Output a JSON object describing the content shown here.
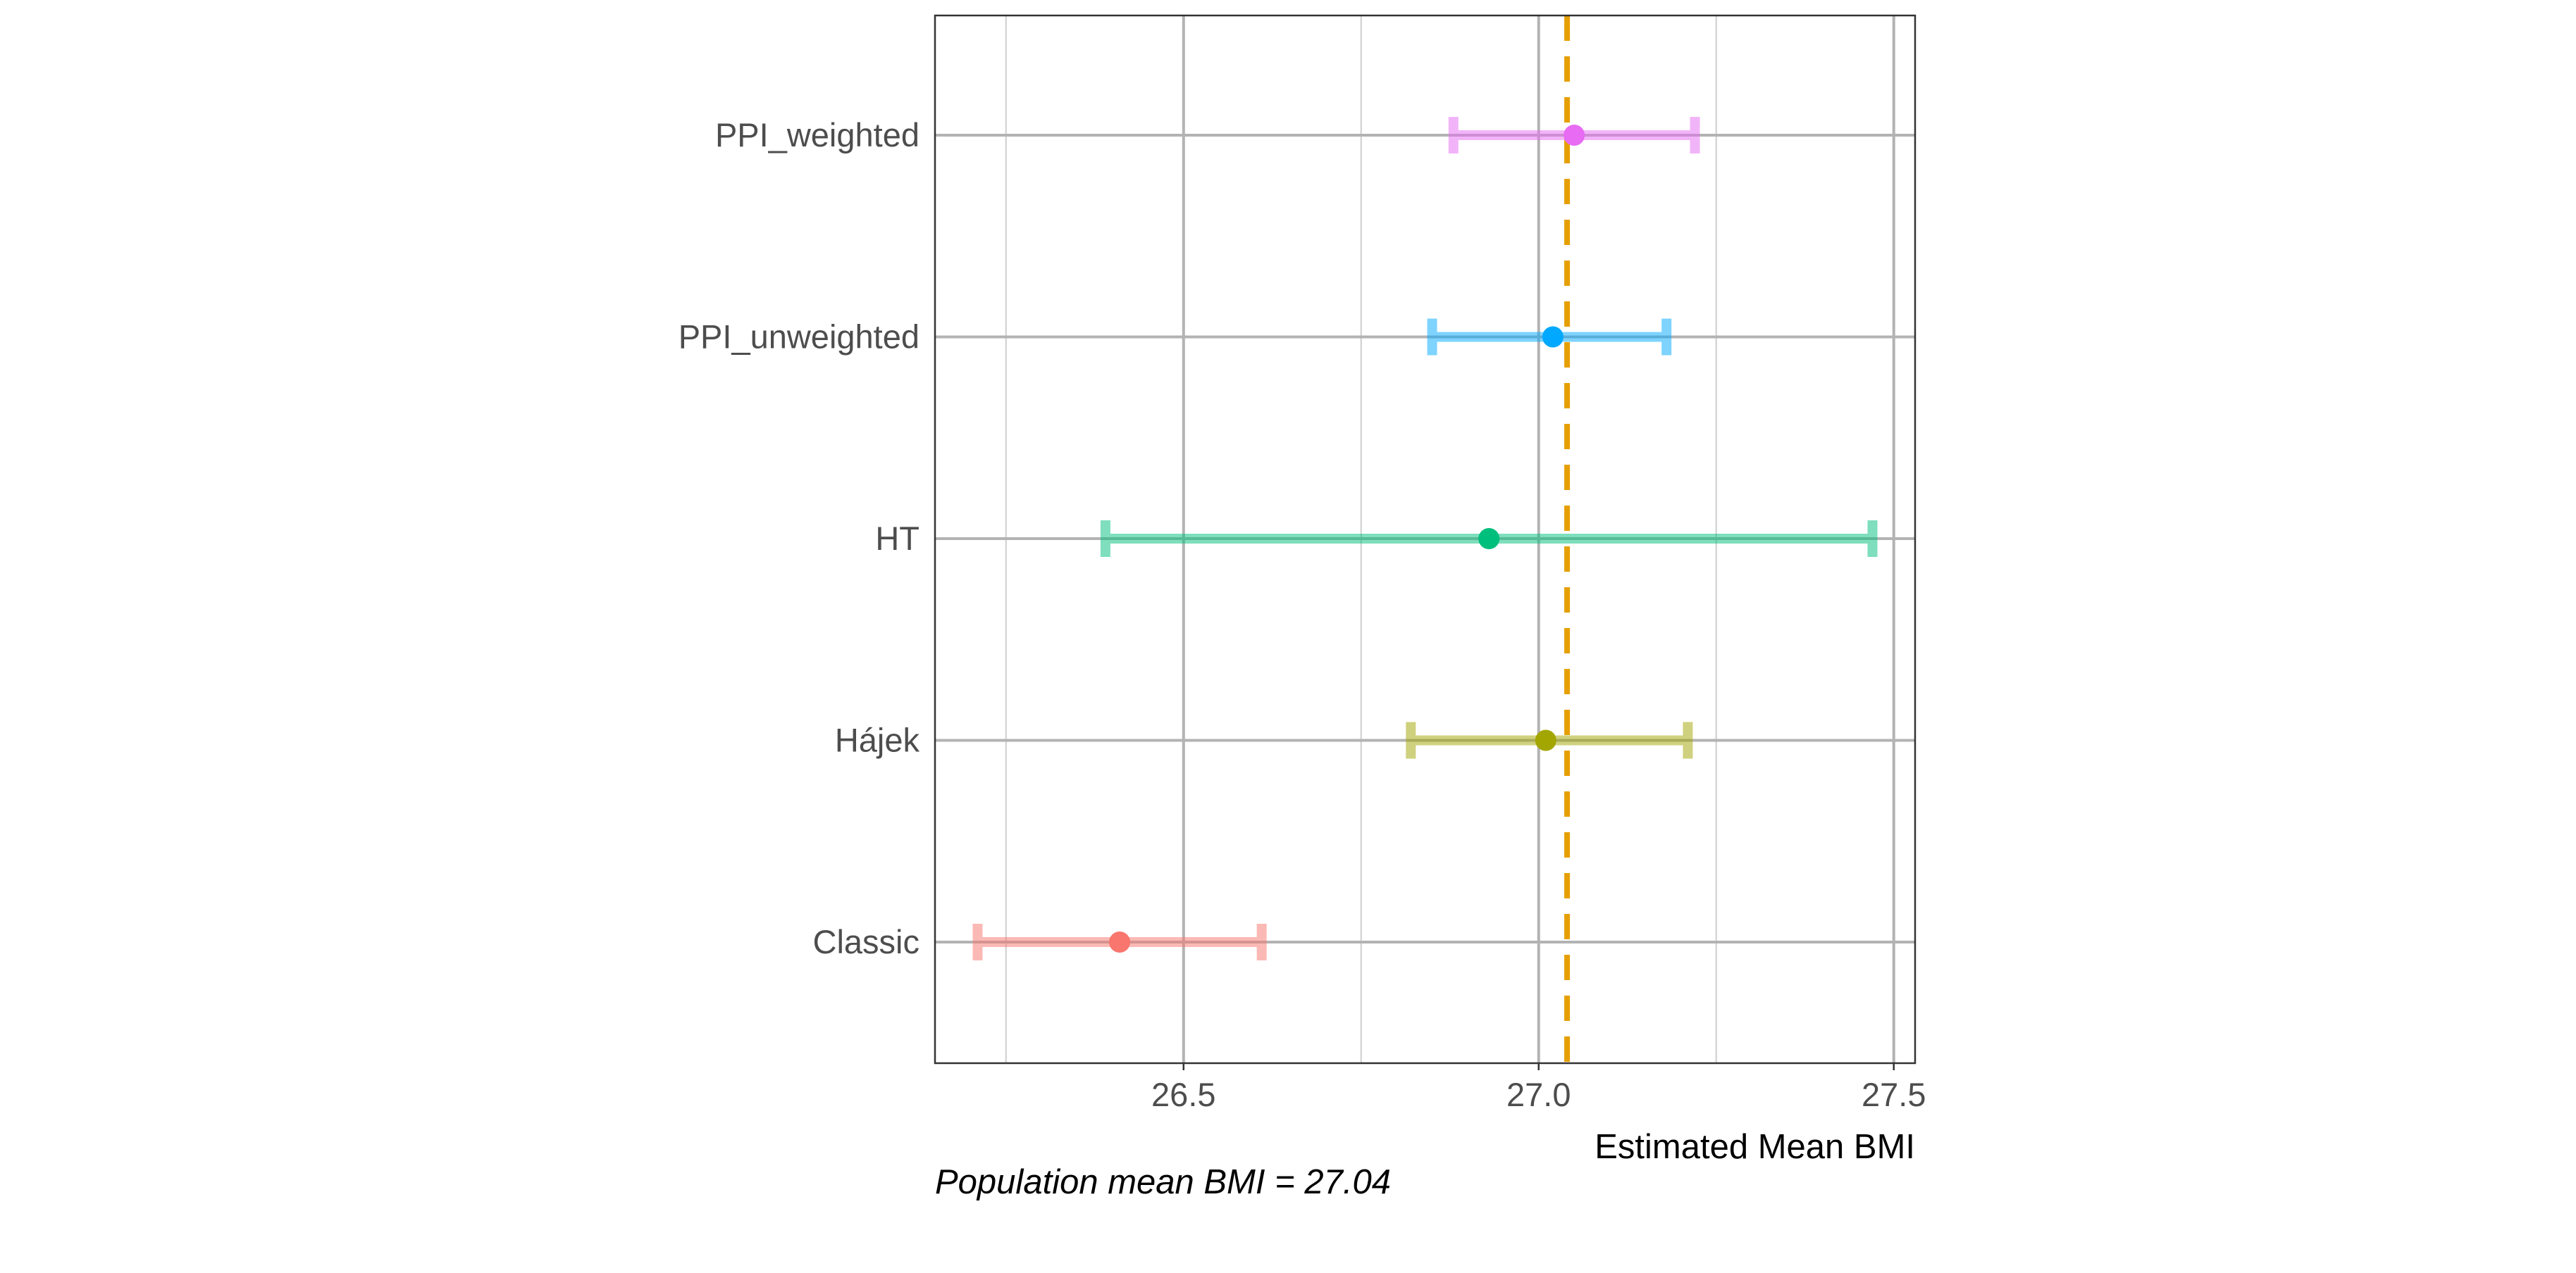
{
  "chart_data": {
    "type": "scatter",
    "subtype": "forest-plot-point-estimates-with-confidence-intervals",
    "title": "",
    "xlabel": "Estimated Mean BMI",
    "ylabel": "",
    "caption": "Population mean BMI = 27.04",
    "xlim": [
      26.15,
      27.53
    ],
    "xticks": [
      "26.5",
      "27.0",
      "27.5"
    ],
    "grid": "on",
    "legend": "none",
    "reference_line": {
      "value": 27.04,
      "style": "dashed",
      "color": "#E69F00"
    },
    "categories": [
      "PPI_weighted",
      "PPI_unweighted",
      "HT",
      "Hájek",
      "Classic"
    ],
    "series": [
      {
        "name": "PPI_weighted",
        "estimate": 27.05,
        "lower": 26.88,
        "upper": 27.22,
        "color": "#E76BF3"
      },
      {
        "name": "PPI_unweighted",
        "estimate": 27.02,
        "lower": 26.85,
        "upper": 27.18,
        "color": "#00A9FF"
      },
      {
        "name": "HT",
        "estimate": 26.93,
        "lower": 26.39,
        "upper": 27.47,
        "color": "#00BF7D"
      },
      {
        "name": "Hájek",
        "estimate": 27.01,
        "lower": 26.82,
        "upper": 27.21,
        "color": "#A3A500"
      },
      {
        "name": "Classic",
        "estimate": 26.41,
        "lower": 26.21,
        "upper": 26.61,
        "color": "#F8766D"
      }
    ]
  }
}
